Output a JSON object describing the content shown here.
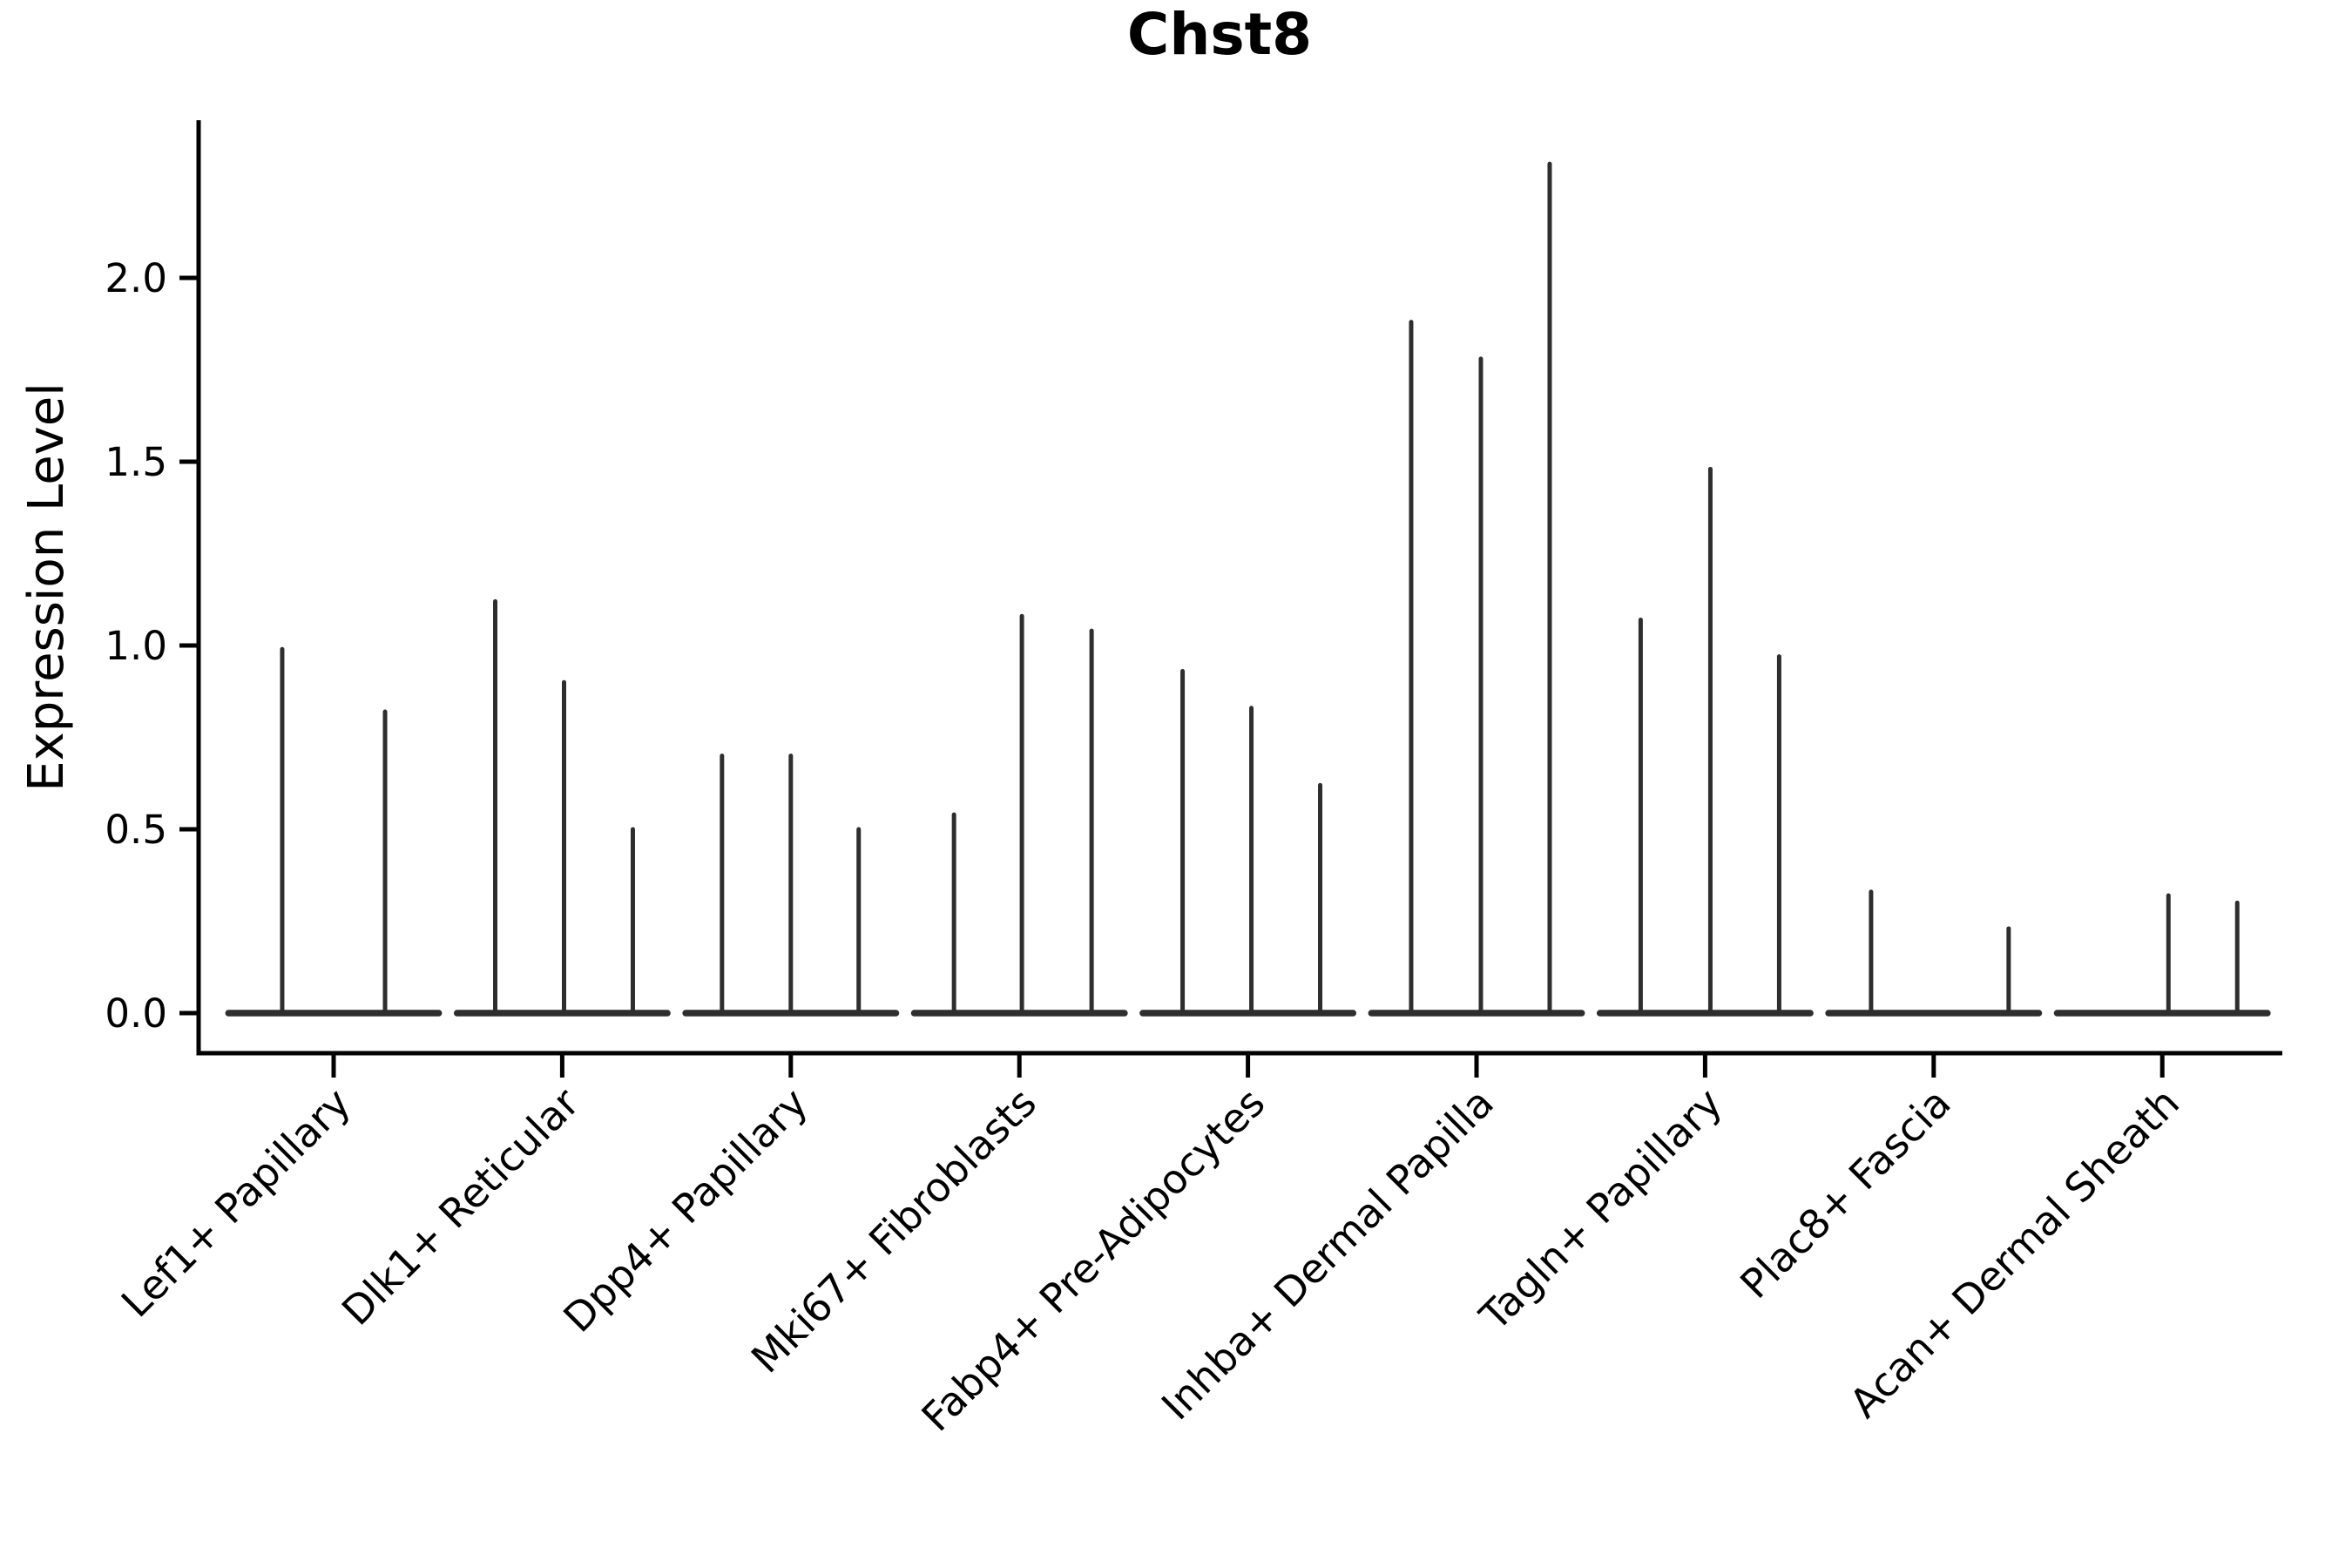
{
  "figure": {
    "background": "#ffffff",
    "axis_color": "#000000",
    "violin_color": "#2e2e2e"
  },
  "chart_data": {
    "type": "violin",
    "title": "Chst8",
    "xlabel": "",
    "ylabel": "Expression Level",
    "grid": false,
    "legend": "none",
    "ylim": [
      -0.11,
      2.42
    ],
    "yticks": [
      0.0,
      0.5,
      1.0,
      1.5,
      2.0
    ],
    "ytick_labels": [
      "0.0",
      "0.5",
      "1.0",
      "1.5",
      "2.0"
    ],
    "categories": [
      "Lef1+ Papillary",
      "Dlk1+ Reticular",
      "Dpp4+ Papillary",
      "Mki67+ Fibroblasts",
      "Fabp4+ Pre-Adipocytes",
      "Inhba+ Dermal Papilla",
      "Tagln+ Papillary",
      "Plac8+ Fascia",
      "Acan+ Dermal Sheath"
    ],
    "violin_base_halfwidth": 0.46,
    "series": [
      {
        "category": "Lef1+ Papillary",
        "violins": [
          {
            "pos": -0.225,
            "max": 0.99
          },
          {
            "pos": 0.225,
            "max": 0.82
          }
        ]
      },
      {
        "category": "Dlk1+ Reticular",
        "violins": [
          {
            "pos": -0.293,
            "max": 1.12
          },
          {
            "pos": 0.008,
            "max": 0.9
          },
          {
            "pos": 0.309,
            "max": 0.5
          }
        ]
      },
      {
        "category": "Dpp4+ Papillary",
        "violins": [
          {
            "pos": -0.301,
            "max": 0.7
          },
          {
            "pos": 0.0,
            "max": 0.7
          },
          {
            "pos": 0.297,
            "max": 0.5
          }
        ]
      },
      {
        "category": "Mki67+ Fibroblasts",
        "violins": [
          {
            "pos": -0.286,
            "max": 0.54
          },
          {
            "pos": 0.011,
            "max": 1.08
          },
          {
            "pos": 0.316,
            "max": 1.04
          }
        ]
      },
      {
        "category": "Fabp4+ Pre-Adipocytes",
        "violins": [
          {
            "pos": -0.286,
            "max": 0.93
          },
          {
            "pos": 0.015,
            "max": 0.83
          },
          {
            "pos": 0.316,
            "max": 0.62
          }
        ]
      },
      {
        "category": "Inhba+ Dermal Papilla",
        "violins": [
          {
            "pos": -0.286,
            "max": 1.88
          },
          {
            "pos": 0.019,
            "max": 1.78
          },
          {
            "pos": 0.32,
            "max": 2.31
          }
        ]
      },
      {
        "category": "Tagln+ Papillary",
        "violins": [
          {
            "pos": -0.282,
            "max": 1.07
          },
          {
            "pos": 0.023,
            "max": 1.48
          },
          {
            "pos": 0.324,
            "max": 0.97
          }
        ]
      },
      {
        "category": "Plac8+ Fascia",
        "violins": [
          {
            "pos": -0.274,
            "max": 0.33
          },
          {
            "pos": 0.328,
            "max": 0.23
          }
        ]
      },
      {
        "category": "Acan+ Dermal Sheath",
        "violins": [
          {
            "pos": 0.027,
            "max": 0.32
          },
          {
            "pos": 0.328,
            "max": 0.3
          }
        ]
      }
    ]
  }
}
